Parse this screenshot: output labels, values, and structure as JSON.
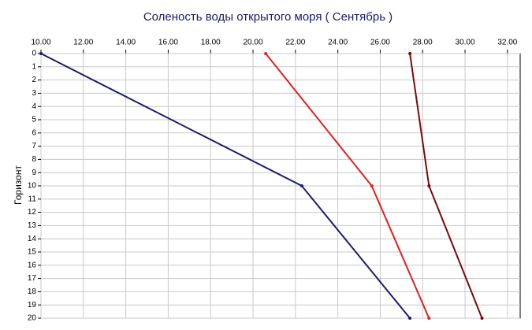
{
  "chart_data": {
    "type": "line",
    "title": "Соленость воды открытого моря    ( Сентябрь )",
    "ylabel": "Горизонт",
    "series": [
      {
        "color": "#1c1c70",
        "x": [
          10.0,
          22.3,
          27.4
        ],
        "values": [
          0,
          10,
          20
        ]
      },
      {
        "color": "#e02020",
        "x": [
          20.6,
          25.6,
          28.3
        ],
        "values": [
          0,
          10,
          20
        ]
      },
      {
        "color": "#7a0a0a",
        "x": [
          27.4,
          28.3,
          30.8
        ],
        "values": [
          0,
          10,
          20
        ]
      }
    ],
    "xlim": [
      10,
      32.6
    ],
    "xticks": [
      {
        "value": 10,
        "label": "10.00"
      },
      {
        "value": 12,
        "label": "12.00"
      },
      {
        "value": 14,
        "label": "14.00"
      },
      {
        "value": 16,
        "label": "16.00"
      },
      {
        "value": 18,
        "label": "18.00"
      },
      {
        "value": 20,
        "label": "20.00"
      },
      {
        "value": 22,
        "label": "22.00"
      },
      {
        "value": 24,
        "label": "24.00"
      },
      {
        "value": 26,
        "label": "26.00"
      },
      {
        "value": 28,
        "label": "28.00"
      },
      {
        "value": 30,
        "label": "30.00"
      },
      {
        "value": 32,
        "label": "32.00"
      }
    ],
    "ylim": [
      0,
      20
    ],
    "yticks": [
      0,
      1,
      2,
      3,
      4,
      5,
      6,
      7,
      8,
      9,
      10,
      11,
      12,
      13,
      14,
      15,
      16,
      17,
      18,
      19,
      20
    ],
    "y_inverted": true,
    "grid": true
  }
}
